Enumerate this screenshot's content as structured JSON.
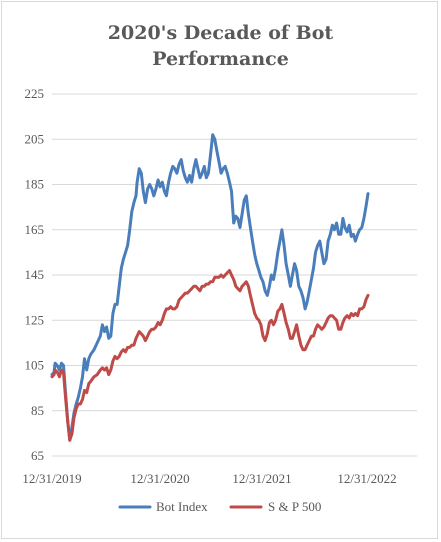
{
  "chart_data": {
    "type": "line",
    "title_line1": "2020's Decade of Bot",
    "title_line2": "Performance",
    "xlabel": "",
    "ylabel": "",
    "ylim": [
      65,
      225
    ],
    "yticks": [
      65,
      85,
      105,
      125,
      145,
      165,
      185,
      205,
      225
    ],
    "ytick_labels": [
      "65",
      "85",
      "105",
      "125",
      "145",
      "165",
      "185",
      "205",
      "225"
    ],
    "xticks": [
      {
        "label": "12/31/2019",
        "t": 0
      },
      {
        "label": "12/31/2020",
        "t": 1
      },
      {
        "label": "12/31/2021",
        "t": 2
      },
      {
        "label": "12/31/2022",
        "t": 3
      }
    ],
    "x_unit": "years since 12/31/2019",
    "grid": {
      "horizontal": true,
      "vertical": false
    },
    "legend_position": "bottom",
    "series": [
      {
        "name": "Bot Index",
        "color": "#4a7ebb",
        "points": [
          [
            0.0,
            101
          ],
          [
            0.02,
            102
          ],
          [
            0.03,
            106
          ],
          [
            0.05,
            105
          ],
          [
            0.07,
            103
          ],
          [
            0.09,
            106
          ],
          [
            0.11,
            105
          ],
          [
            0.13,
            92
          ],
          [
            0.15,
            80
          ],
          [
            0.17,
            72
          ],
          [
            0.19,
            78
          ],
          [
            0.21,
            84
          ],
          [
            0.23,
            88
          ],
          [
            0.25,
            91
          ],
          [
            0.27,
            95
          ],
          [
            0.29,
            100
          ],
          [
            0.31,
            108
          ],
          [
            0.33,
            103
          ],
          [
            0.35,
            108
          ],
          [
            0.37,
            110
          ],
          [
            0.4,
            112
          ],
          [
            0.43,
            115
          ],
          [
            0.46,
            118
          ],
          [
            0.48,
            123
          ],
          [
            0.5,
            120
          ],
          [
            0.52,
            122
          ],
          [
            0.54,
            117
          ],
          [
            0.56,
            118
          ],
          [
            0.58,
            128
          ],
          [
            0.6,
            132
          ],
          [
            0.62,
            132
          ],
          [
            0.64,
            140
          ],
          [
            0.66,
            148
          ],
          [
            0.68,
            152
          ],
          [
            0.7,
            155
          ],
          [
            0.72,
            158
          ],
          [
            0.74,
            165
          ],
          [
            0.76,
            173
          ],
          [
            0.78,
            177
          ],
          [
            0.8,
            180
          ],
          [
            0.81,
            186
          ],
          [
            0.83,
            192
          ],
          [
            0.85,
            190
          ],
          [
            0.87,
            182
          ],
          [
            0.89,
            177
          ],
          [
            0.91,
            183
          ],
          [
            0.93,
            185
          ],
          [
            0.95,
            183
          ],
          [
            0.97,
            180
          ],
          [
            0.99,
            183
          ],
          [
            1.01,
            187
          ],
          [
            1.03,
            184
          ],
          [
            1.05,
            186
          ],
          [
            1.07,
            182
          ],
          [
            1.09,
            180
          ],
          [
            1.11,
            186
          ],
          [
            1.13,
            190
          ],
          [
            1.15,
            193
          ],
          [
            1.17,
            192
          ],
          [
            1.19,
            190
          ],
          [
            1.21,
            194
          ],
          [
            1.23,
            196
          ],
          [
            1.25,
            191
          ],
          [
            1.27,
            188
          ],
          [
            1.29,
            186
          ],
          [
            1.31,
            189
          ],
          [
            1.33,
            186
          ],
          [
            1.35,
            192
          ],
          [
            1.37,
            196
          ],
          [
            1.39,
            192
          ],
          [
            1.41,
            188
          ],
          [
            1.43,
            190
          ],
          [
            1.45,
            193
          ],
          [
            1.47,
            188
          ],
          [
            1.49,
            190
          ],
          [
            1.51,
            198
          ],
          [
            1.53,
            207
          ],
          [
            1.55,
            205
          ],
          [
            1.57,
            200
          ],
          [
            1.59,
            195
          ],
          [
            1.61,
            190
          ],
          [
            1.63,
            192
          ],
          [
            1.65,
            193
          ],
          [
            1.67,
            190
          ],
          [
            1.69,
            186
          ],
          [
            1.71,
            182
          ],
          [
            1.73,
            168
          ],
          [
            1.75,
            171
          ],
          [
            1.77,
            170
          ],
          [
            1.79,
            166
          ],
          [
            1.81,
            172
          ],
          [
            1.83,
            178
          ],
          [
            1.85,
            180
          ],
          [
            1.87,
            172
          ],
          [
            1.89,
            166
          ],
          [
            1.91,
            160
          ],
          [
            1.93,
            154
          ],
          [
            1.95,
            150
          ],
          [
            1.97,
            147
          ],
          [
            1.99,
            144
          ],
          [
            2.01,
            142
          ],
          [
            2.03,
            138
          ],
          [
            2.05,
            136
          ],
          [
            2.07,
            140
          ],
          [
            2.09,
            145
          ],
          [
            2.11,
            143
          ],
          [
            2.13,
            148
          ],
          [
            2.15,
            155
          ],
          [
            2.17,
            160
          ],
          [
            2.19,
            165
          ],
          [
            2.21,
            158
          ],
          [
            2.23,
            150
          ],
          [
            2.25,
            145
          ],
          [
            2.27,
            140
          ],
          [
            2.29,
            145
          ],
          [
            2.31,
            150
          ],
          [
            2.33,
            147
          ],
          [
            2.35,
            140
          ],
          [
            2.37,
            138
          ],
          [
            2.39,
            135
          ],
          [
            2.41,
            130
          ],
          [
            2.43,
            133
          ],
          [
            2.45,
            138
          ],
          [
            2.47,
            143
          ],
          [
            2.49,
            148
          ],
          [
            2.51,
            155
          ],
          [
            2.53,
            158
          ],
          [
            2.55,
            160
          ],
          [
            2.57,
            155
          ],
          [
            2.59,
            150
          ],
          [
            2.61,
            152
          ],
          [
            2.63,
            160
          ],
          [
            2.65,
            163
          ],
          [
            2.67,
            167
          ],
          [
            2.69,
            165
          ],
          [
            2.71,
            168
          ],
          [
            2.73,
            163
          ],
          [
            2.75,
            163
          ],
          [
            2.77,
            170
          ],
          [
            2.79,
            166
          ],
          [
            2.81,
            164
          ],
          [
            2.83,
            167
          ],
          [
            2.85,
            162
          ],
          [
            2.87,
            163
          ],
          [
            2.89,
            160
          ],
          [
            2.91,
            163
          ],
          [
            2.93,
            165
          ],
          [
            2.95,
            166
          ],
          [
            2.97,
            170
          ],
          [
            2.99,
            175
          ],
          [
            3.01,
            181
          ]
        ]
      },
      {
        "name": "S & P 500",
        "color": "#be4b48",
        "points": [
          [
            0.0,
            100
          ],
          [
            0.02,
            101
          ],
          [
            0.03,
            103
          ],
          [
            0.05,
            102
          ],
          [
            0.07,
            100
          ],
          [
            0.09,
            103
          ],
          [
            0.11,
            102
          ],
          [
            0.13,
            90
          ],
          [
            0.15,
            80
          ],
          [
            0.17,
            72
          ],
          [
            0.19,
            75
          ],
          [
            0.21,
            82
          ],
          [
            0.23,
            86
          ],
          [
            0.25,
            88
          ],
          [
            0.27,
            88
          ],
          [
            0.29,
            90
          ],
          [
            0.31,
            94
          ],
          [
            0.33,
            93
          ],
          [
            0.35,
            97
          ],
          [
            0.37,
            98
          ],
          [
            0.4,
            100
          ],
          [
            0.43,
            101
          ],
          [
            0.46,
            103
          ],
          [
            0.48,
            104
          ],
          [
            0.5,
            103
          ],
          [
            0.52,
            104
          ],
          [
            0.54,
            101
          ],
          [
            0.56,
            103
          ],
          [
            0.58,
            107
          ],
          [
            0.6,
            109
          ],
          [
            0.62,
            108
          ],
          [
            0.64,
            109
          ],
          [
            0.66,
            111
          ],
          [
            0.68,
            112
          ],
          [
            0.7,
            111
          ],
          [
            0.72,
            113
          ],
          [
            0.74,
            113
          ],
          [
            0.76,
            114
          ],
          [
            0.78,
            114
          ],
          [
            0.8,
            117
          ],
          [
            0.81,
            118
          ],
          [
            0.83,
            120
          ],
          [
            0.85,
            119
          ],
          [
            0.87,
            118
          ],
          [
            0.89,
            116
          ],
          [
            0.91,
            118
          ],
          [
            0.93,
            120
          ],
          [
            0.95,
            121
          ],
          [
            0.97,
            121
          ],
          [
            0.99,
            122
          ],
          [
            1.01,
            124
          ],
          [
            1.03,
            123
          ],
          [
            1.05,
            125
          ],
          [
            1.07,
            128
          ],
          [
            1.09,
            130
          ],
          [
            1.11,
            130
          ],
          [
            1.13,
            131
          ],
          [
            1.15,
            130
          ],
          [
            1.17,
            130
          ],
          [
            1.19,
            131
          ],
          [
            1.21,
            134
          ],
          [
            1.23,
            135
          ],
          [
            1.25,
            136
          ],
          [
            1.27,
            137
          ],
          [
            1.29,
            137
          ],
          [
            1.31,
            138
          ],
          [
            1.33,
            139
          ],
          [
            1.35,
            140
          ],
          [
            1.37,
            140
          ],
          [
            1.39,
            139
          ],
          [
            1.41,
            138
          ],
          [
            1.43,
            140
          ],
          [
            1.45,
            140
          ],
          [
            1.47,
            141
          ],
          [
            1.49,
            141
          ],
          [
            1.51,
            142
          ],
          [
            1.53,
            142
          ],
          [
            1.55,
            144
          ],
          [
            1.57,
            144
          ],
          [
            1.59,
            144
          ],
          [
            1.61,
            145
          ],
          [
            1.63,
            144
          ],
          [
            1.65,
            145
          ],
          [
            1.67,
            146
          ],
          [
            1.69,
            147
          ],
          [
            1.71,
            145
          ],
          [
            1.73,
            143
          ],
          [
            1.75,
            140
          ],
          [
            1.77,
            139
          ],
          [
            1.79,
            138
          ],
          [
            1.81,
            140
          ],
          [
            1.83,
            141
          ],
          [
            1.85,
            142
          ],
          [
            1.87,
            140
          ],
          [
            1.89,
            136
          ],
          [
            1.91,
            132
          ],
          [
            1.93,
            128
          ],
          [
            1.95,
            126
          ],
          [
            1.97,
            125
          ],
          [
            1.99,
            123
          ],
          [
            2.01,
            118
          ],
          [
            2.03,
            116
          ],
          [
            2.05,
            119
          ],
          [
            2.07,
            124
          ],
          [
            2.09,
            125
          ],
          [
            2.11,
            123
          ],
          [
            2.13,
            125
          ],
          [
            2.15,
            129
          ],
          [
            2.17,
            130
          ],
          [
            2.19,
            132
          ],
          [
            2.21,
            128
          ],
          [
            2.23,
            124
          ],
          [
            2.25,
            121
          ],
          [
            2.27,
            117
          ],
          [
            2.29,
            117
          ],
          [
            2.31,
            120
          ],
          [
            2.33,
            123
          ],
          [
            2.35,
            118
          ],
          [
            2.37,
            114
          ],
          [
            2.39,
            112
          ],
          [
            2.41,
            112
          ],
          [
            2.43,
            114
          ],
          [
            2.45,
            116
          ],
          [
            2.47,
            118
          ],
          [
            2.49,
            118
          ],
          [
            2.51,
            121
          ],
          [
            2.53,
            123
          ],
          [
            2.55,
            122
          ],
          [
            2.57,
            121
          ],
          [
            2.59,
            122
          ],
          [
            2.61,
            124
          ],
          [
            2.63,
            126
          ],
          [
            2.65,
            127
          ],
          [
            2.67,
            127
          ],
          [
            2.69,
            126
          ],
          [
            2.71,
            125
          ],
          [
            2.73,
            121
          ],
          [
            2.75,
            121
          ],
          [
            2.77,
            124
          ],
          [
            2.79,
            126
          ],
          [
            2.81,
            127
          ],
          [
            2.83,
            126
          ],
          [
            2.85,
            128
          ],
          [
            2.87,
            127
          ],
          [
            2.89,
            128
          ],
          [
            2.91,
            127
          ],
          [
            2.93,
            130
          ],
          [
            2.95,
            130
          ],
          [
            2.97,
            131
          ],
          [
            2.99,
            134
          ],
          [
            3.01,
            136
          ]
        ]
      }
    ]
  }
}
